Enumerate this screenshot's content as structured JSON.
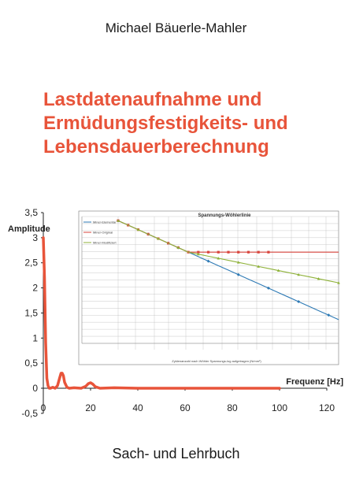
{
  "cover": {
    "author": "Michael Bäuerle-Mahler",
    "title_lines": [
      "Lastdatenaufnahme und",
      "Ermüdungsfestigkeits- und",
      "Lebensdauerberechnung"
    ],
    "subtitle": "Sach- und Lehrbuch"
  },
  "colors": {
    "title": "#e8543a",
    "main_curve": "#e8543a",
    "series_blue": "#2e7ab5",
    "series_red": "#d9453d",
    "series_green": "#8fb23a"
  },
  "chart_data": [
    {
      "type": "line",
      "ylabel": "Amplitude",
      "xlabel": "Frequenz [Hz]",
      "xlim": [
        0,
        120
      ],
      "ylim": [
        -0.5,
        3.5
      ],
      "x_ticks": [
        "0",
        "20",
        "40",
        "60",
        "80",
        "100",
        "120"
      ],
      "y_ticks": [
        "-0,5",
        "0",
        "0,5",
        "1",
        "1,5",
        "2",
        "2,5",
        "3",
        "3,5"
      ],
      "series": [
        {
          "x": [
            0,
            0.5,
            1,
            1.5,
            2,
            2.5,
            3,
            4,
            5,
            6,
            7,
            7.5,
            8,
            8.5,
            9,
            10,
            11,
            13,
            16,
            18,
            19,
            20,
            21,
            22,
            24,
            30,
            40,
            60,
            80,
            100
          ],
          "values": [
            3.0,
            2.2,
            0.9,
            0.2,
            0.05,
            0.0,
            0.0,
            0.02,
            0.0,
            0.05,
            0.22,
            0.3,
            0.3,
            0.25,
            0.12,
            0.02,
            0.0,
            0.01,
            0.0,
            0.04,
            0.09,
            0.11,
            0.08,
            0.03,
            0.0,
            0.01,
            0.0,
            0.0,
            0.0,
            0.0
          ]
        }
      ]
    },
    {
      "type": "line",
      "title": "Spannungs-Wöhlerlinie",
      "xlabel": "Zyklenanzahl nach Wöhler Spannungs-log aufgetragen (N/mm²)",
      "legend": [
        "Miner-Elementar",
        "Miner-Original",
        "Miner-Modifiziert"
      ],
      "x": [
        36,
        40,
        44,
        48,
        52,
        56,
        60,
        64,
        68,
        72,
        76,
        80,
        84,
        88,
        92,
        96,
        100,
        104,
        108,
        112,
        116,
        120,
        124
      ],
      "series": [
        {
          "name": "Miner-Elementar",
          "values": [
            3.5,
            3.39,
            3.28,
            3.17,
            3.06,
            2.95,
            2.84,
            2.73,
            2.62,
            2.51,
            2.4,
            2.29,
            2.18,
            2.07,
            1.96,
            1.85,
            1.74,
            1.63,
            1.52,
            1.41,
            1.3,
            1.19,
            1.08
          ]
        },
        {
          "name": "Miner-Original",
          "values": [
            3.5,
            3.39,
            3.28,
            3.17,
            3.06,
            2.95,
            2.84,
            2.73,
            2.73,
            2.73,
            2.73,
            2.73,
            2.73,
            2.73,
            2.73,
            2.73,
            2.73,
            2.73,
            2.73,
            2.73,
            2.73,
            2.73,
            2.73
          ]
        },
        {
          "name": "Miner-Modifiziert",
          "values": [
            3.5,
            3.39,
            3.28,
            3.17,
            3.06,
            2.95,
            2.84,
            2.73,
            2.68,
            2.63,
            2.58,
            2.53,
            2.48,
            2.43,
            2.38,
            2.33,
            2.28,
            2.23,
            2.18,
            2.13,
            2.08,
            2.03,
            1.98
          ]
        }
      ]
    }
  ]
}
